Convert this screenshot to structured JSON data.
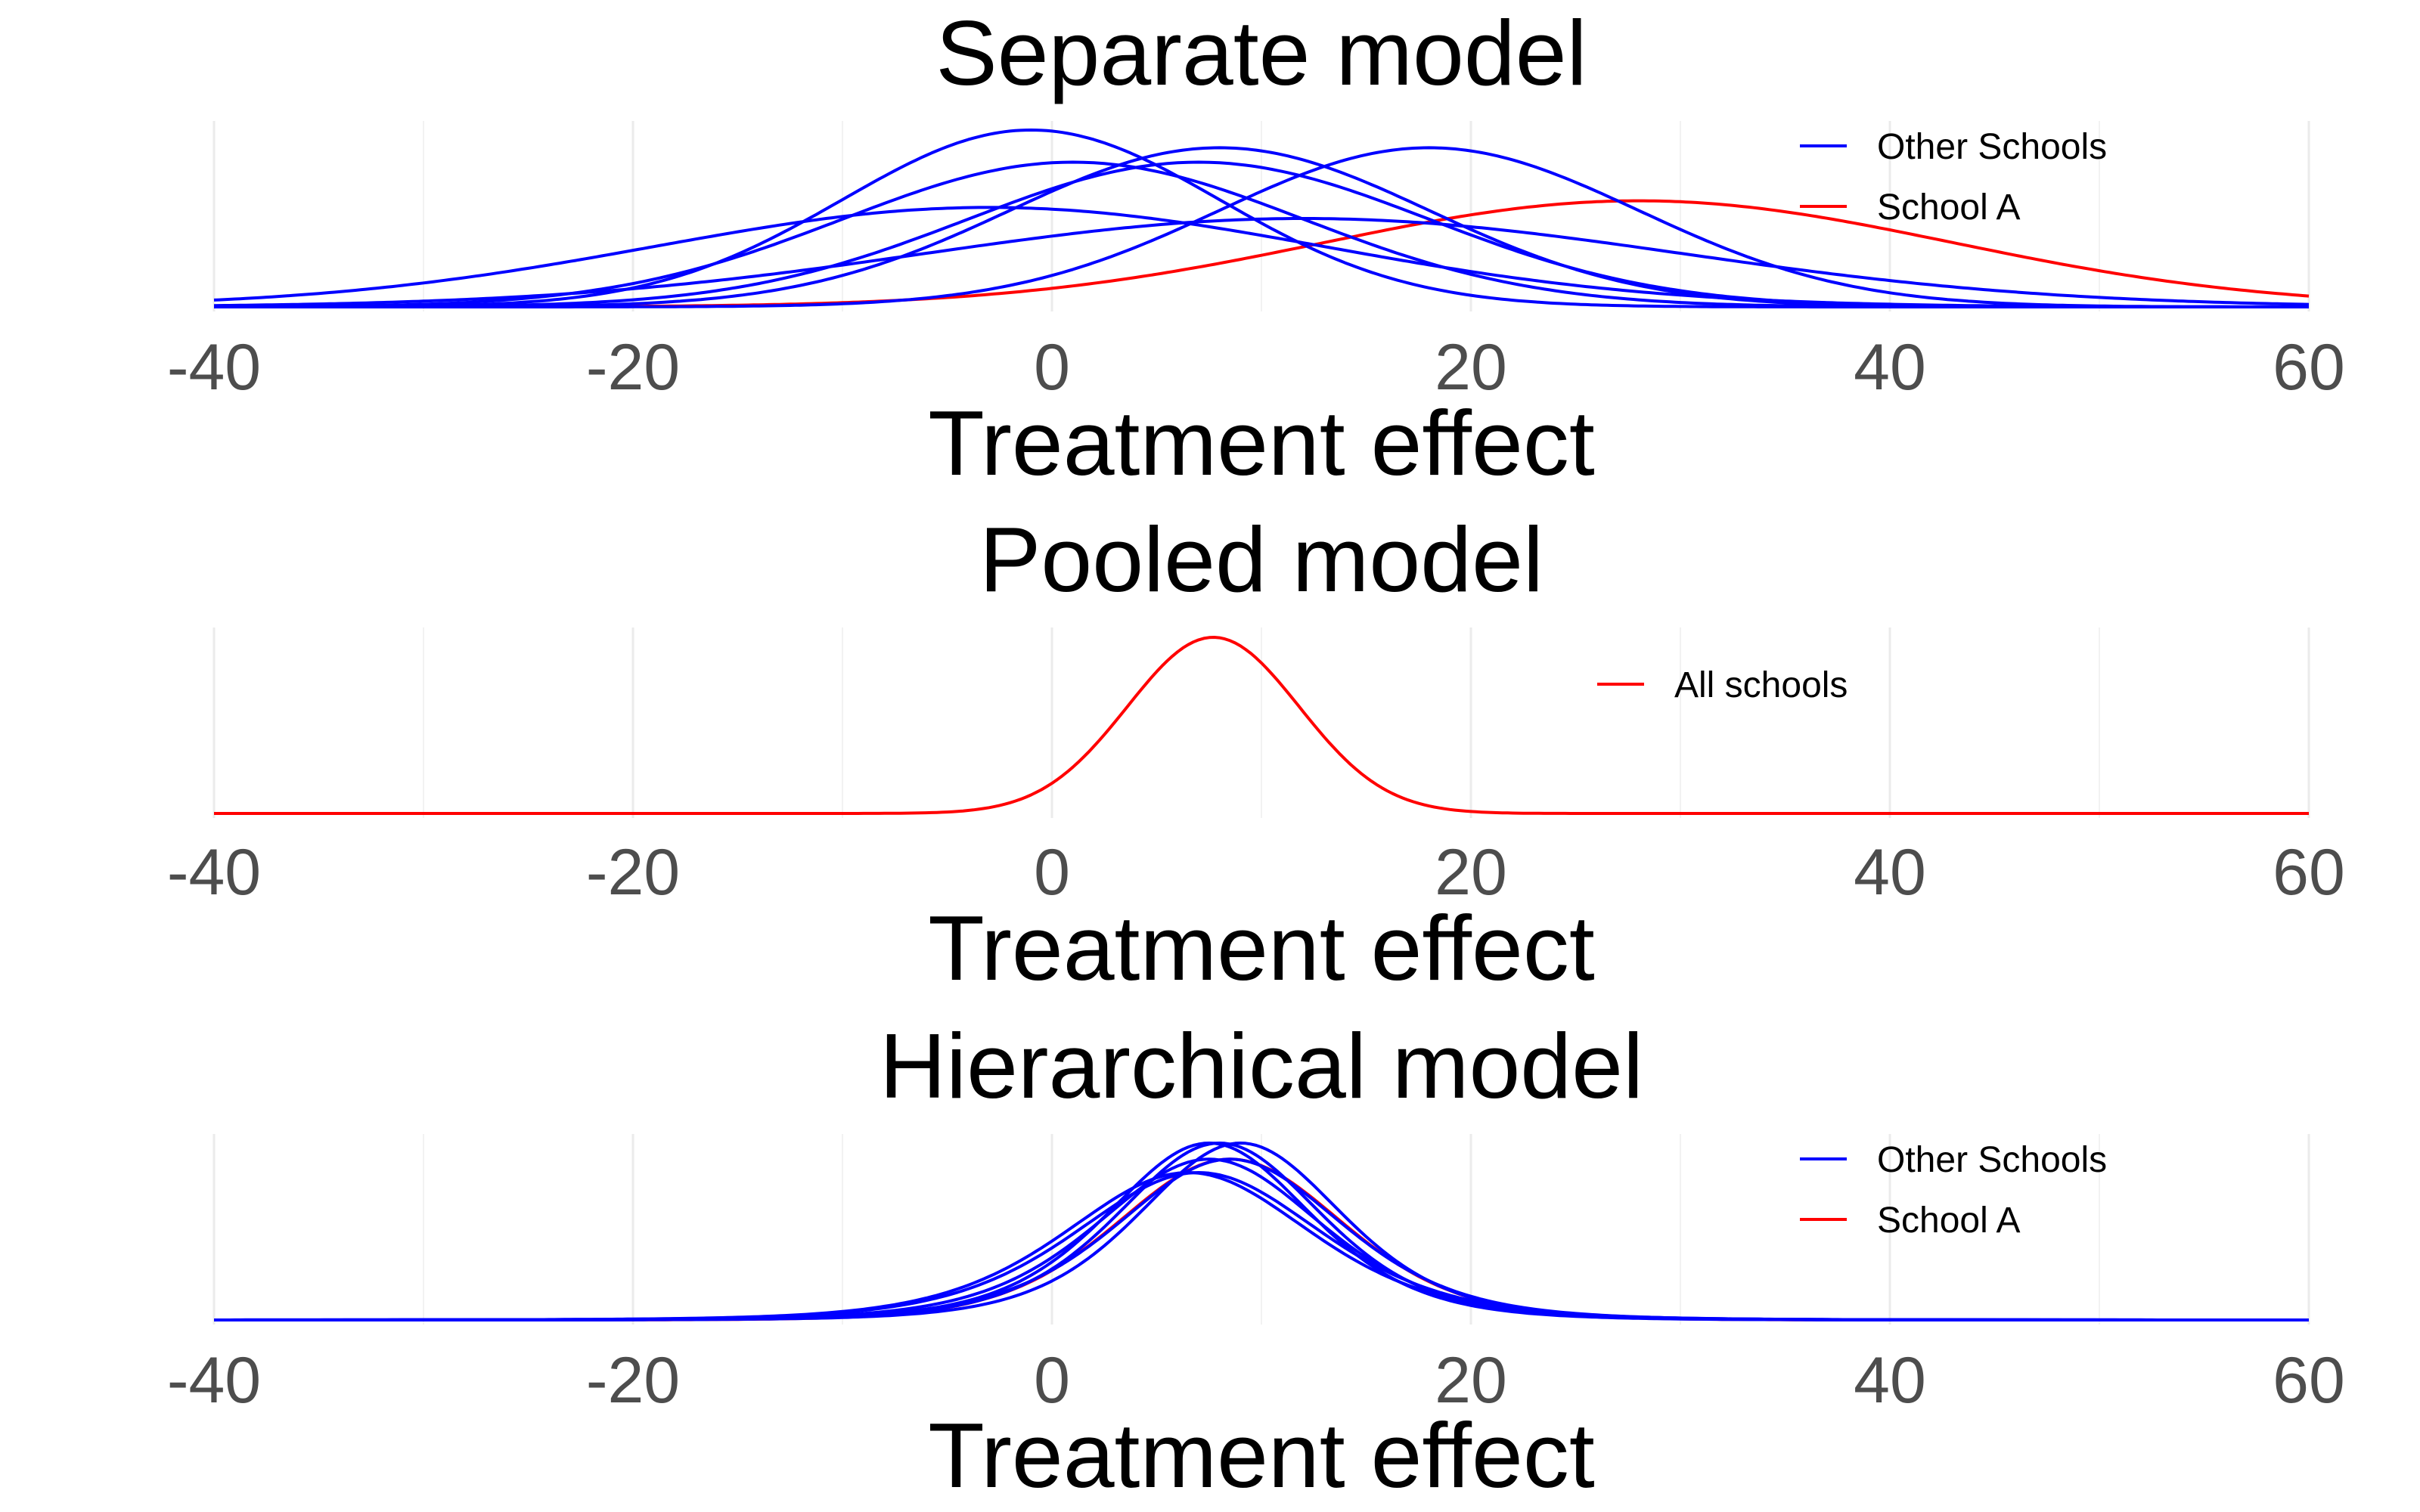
{
  "chart_data": [
    {
      "type": "line",
      "title": "Separate model",
      "xlabel": "Treatment effect",
      "ylabel": "",
      "xlim": [
        -40,
        60
      ],
      "xticks": [
        -40,
        -20,
        0,
        20,
        40,
        60
      ],
      "y_axis_shown": false,
      "grid": "vertical",
      "legend_position": "top-right",
      "legend": [
        {
          "label": "Other Schools",
          "color": "#0000ff"
        },
        {
          "label": "School A",
          "color": "#ff0000"
        }
      ],
      "series": [
        {
          "name": "School A",
          "color": "#ff0000",
          "mean": 28,
          "sd": 15
        },
        {
          "name": "Other Schools",
          "color": "#0000ff",
          "mean": 8,
          "sd": 10
        },
        {
          "name": "Other Schools",
          "color": "#0000ff",
          "mean": -3,
          "sd": 16
        },
        {
          "name": "Other Schools",
          "color": "#0000ff",
          "mean": 7,
          "sd": 11
        },
        {
          "name": "Other Schools",
          "color": "#0000ff",
          "mean": -1,
          "sd": 9
        },
        {
          "name": "Other Schools",
          "color": "#0000ff",
          "mean": 1,
          "sd": 11
        },
        {
          "name": "Other Schools",
          "color": "#0000ff",
          "mean": 18,
          "sd": 10
        },
        {
          "name": "Other Schools",
          "color": "#0000ff",
          "mean": 12,
          "sd": 18
        }
      ]
    },
    {
      "type": "line",
      "title": "Pooled model",
      "xlabel": "Treatment effect",
      "ylabel": "",
      "xlim": [
        -40,
        60
      ],
      "xticks": [
        -40,
        -20,
        0,
        20,
        40,
        60
      ],
      "y_axis_shown": false,
      "grid": "vertical",
      "legend_position": "top-right",
      "legend": [
        {
          "label": "All schools",
          "color": "#ff0000"
        }
      ],
      "series": [
        {
          "name": "All schools",
          "color": "#ff0000",
          "mean": 7.7,
          "sd": 4.1
        }
      ]
    },
    {
      "type": "line",
      "title": "Hierarchical model",
      "xlabel": "Treatment effect",
      "ylabel": "",
      "xlim": [
        -40,
        60
      ],
      "xticks": [
        -40,
        -20,
        0,
        20,
        40,
        60
      ],
      "y_axis_shown": false,
      "grid": "vertical",
      "legend_position": "top-right",
      "legend": [
        {
          "label": "Other Schools",
          "color": "#0000ff"
        },
        {
          "label": "School A",
          "color": "#ff0000"
        }
      ],
      "series": [
        {
          "name": "School A",
          "color": "#ff0000",
          "mean": 8.5,
          "sd": 5.5,
          "tail": 9
        },
        {
          "name": "Other Schools",
          "color": "#0000ff",
          "mean": 7.5,
          "sd": 5.0,
          "tail": 6
        },
        {
          "name": "Other Schools",
          "color": "#0000ff",
          "mean": 6.5,
          "sd": 6.0,
          "tail": 6
        },
        {
          "name": "Other Schools",
          "color": "#0000ff",
          "mean": 7.5,
          "sd": 5.5,
          "tail": 6
        },
        {
          "name": "Other Schools",
          "color": "#0000ff",
          "mean": 7.0,
          "sd": 6.0,
          "tail": 6
        },
        {
          "name": "Other Schools",
          "color": "#0000ff",
          "mean": 8.0,
          "sd": 5.0,
          "tail": 6
        },
        {
          "name": "Other Schools",
          "color": "#0000ff",
          "mean": 9.0,
          "sd": 5.0,
          "tail": 6
        },
        {
          "name": "Other Schools",
          "color": "#0000ff",
          "mean": 8.5,
          "sd": 5.5,
          "tail": 6
        }
      ]
    }
  ]
}
